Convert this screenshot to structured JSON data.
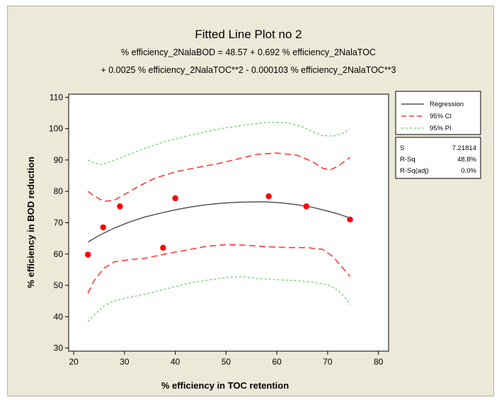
{
  "chart_data": {
    "type": "line",
    "title": "Fitted Line Plot no 2",
    "subtitle_line1": "% efficiency_2NalaBOD =  48.57 + 0.692 % efficiency_2NalaTOC",
    "subtitle_line2": "+ 0.0025 % efficiency_2NalaTOC**2 - 0.000103 % efficiency_2NalaTOC**3",
    "xlabel": "% efficiency in TOC retention",
    "ylabel": "% efficiency in BOD reduction",
    "xlim": [
      19,
      82
    ],
    "ylim": [
      29,
      111
    ],
    "xticks": [
      20,
      30,
      40,
      50,
      60,
      70,
      80
    ],
    "yticks": [
      30,
      40,
      50,
      60,
      70,
      80,
      90,
      100,
      110
    ],
    "points": [
      {
        "x": 22.8,
        "y": 59.8
      },
      {
        "x": 25.8,
        "y": 68.5
      },
      {
        "x": 29.1,
        "y": 75.2
      },
      {
        "x": 37.6,
        "y": 62.0
      },
      {
        "x": 40.0,
        "y": 77.8
      },
      {
        "x": 58.4,
        "y": 78.4
      },
      {
        "x": 65.8,
        "y": 75.2
      },
      {
        "x": 74.4,
        "y": 71.0
      }
    ],
    "series": [
      {
        "name": "Regression",
        "color": "#555555",
        "style": "solid",
        "x": [
          22.8,
          25,
          28,
          31,
          34,
          37,
          40,
          43,
          46,
          49,
          52,
          55,
          58,
          61,
          64,
          67,
          70,
          72,
          74.4
        ],
        "y": [
          63.8,
          65.9,
          68.3,
          70.2,
          71.8,
          73.0,
          74.1,
          75.0,
          75.7,
          76.2,
          76.5,
          76.6,
          76.6,
          76.3,
          75.7,
          74.9,
          73.7,
          72.8,
          71.5
        ]
      },
      {
        "name": "95% CI",
        "color": "#ff3b3b",
        "style": "dashed",
        "x": [
          22.8,
          24,
          26,
          28,
          30,
          33,
          36,
          40,
          44,
          48,
          52,
          56,
          60,
          64,
          67,
          69,
          70.5,
          72,
          74.4
        ],
        "y": [
          80.0,
          78.5,
          76.8,
          77.2,
          79.0,
          81.8,
          84.2,
          86.2,
          87.5,
          88.7,
          90.2,
          91.8,
          92.2,
          91.5,
          89.5,
          87.4,
          86.8,
          88.0,
          90.8
        ]
      },
      {
        "name": "95% CI",
        "color": "#ff3b3b",
        "style": "dashed",
        "x": [
          22.8,
          24,
          26,
          28,
          31,
          34,
          38,
          42,
          46,
          50,
          54,
          58,
          62,
          66,
          69,
          71,
          73,
          74.4
        ],
        "y": [
          47.5,
          51.5,
          55.5,
          57.5,
          58.2,
          58.6,
          60.0,
          61.2,
          62.4,
          63.0,
          62.8,
          62.3,
          62.1,
          62.0,
          61.5,
          59.2,
          55.5,
          52.8
        ]
      },
      {
        "name": "95% PI",
        "color": "#7ed87e",
        "style": "dotted",
        "x": [
          22.8,
          24,
          25.5,
          27,
          30,
          34,
          38,
          42,
          46,
          50,
          54,
          58,
          62,
          65,
          67,
          69,
          71,
          73,
          74.4
        ],
        "y": [
          90.0,
          89.0,
          88.6,
          89.3,
          91.2,
          93.7,
          95.9,
          97.5,
          99.0,
          100.3,
          101.2,
          102.0,
          101.9,
          100.6,
          99.0,
          97.8,
          97.6,
          98.5,
          99.8
        ]
      },
      {
        "name": "95% PI",
        "color": "#7ed87e",
        "style": "dotted",
        "x": [
          22.8,
          24,
          26,
          28,
          31,
          35,
          39,
          43,
          47,
          50,
          53,
          56,
          60,
          64,
          67,
          70,
          72,
          73.5,
          74.4
        ],
        "y": [
          38.4,
          40.5,
          43.5,
          45.0,
          46.2,
          47.5,
          49.2,
          50.8,
          51.8,
          52.5,
          52.8,
          52.2,
          51.8,
          51.5,
          51.0,
          50.2,
          48.5,
          46.0,
          43.8
        ]
      }
    ],
    "point_color": "#ff0000",
    "legend": {
      "placement": "right",
      "entries": [
        {
          "label": "Regression",
          "color": "#555555",
          "style": "solid"
        },
        {
          "label": "95% CI",
          "color": "#ff3b3b",
          "style": "dashed"
        },
        {
          "label": "95% PI",
          "color": "#7ed87e",
          "style": "dotted"
        }
      ]
    },
    "stats": [
      {
        "label": "S",
        "value": "7.21814"
      },
      {
        "label": "R-Sq",
        "value": "48.8%"
      },
      {
        "label": "R-Sq(adj)",
        "value": "0.0%"
      }
    ],
    "grid": false
  }
}
